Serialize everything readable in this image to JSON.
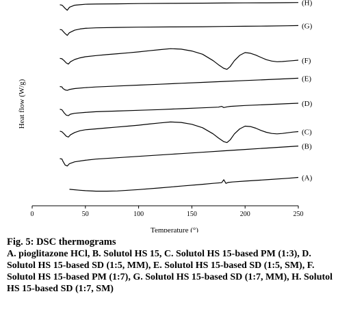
{
  "chart_data": {
    "type": "line",
    "title": "",
    "xlabel": "Temperature (°)",
    "ylabel": "Heat flow (W/g)",
    "xlim": [
      0,
      250
    ],
    "xticks": [
      0,
      50,
      100,
      150,
      200,
      250
    ],
    "x_tick_labels": [
      "0",
      "50",
      "100",
      "150",
      "200",
      "250"
    ],
    "y_ticks_shown": false,
    "series": [
      {
        "name": "(H)",
        "x": [
          26,
          28,
          29,
          31,
          33,
          35,
          40,
          45,
          50,
          60,
          80,
          100,
          130,
          160,
          180,
          200,
          220,
          240,
          250
        ],
        "y": [
          7.54,
          7.52,
          7.48,
          7.38,
          7.3,
          7.43,
          7.52,
          7.54,
          7.56,
          7.57,
          7.58,
          7.59,
          7.6,
          7.61,
          7.615,
          7.62,
          7.625,
          7.63,
          7.635
        ]
      },
      {
        "name": "(G)",
        "x": [
          26,
          28,
          29,
          31,
          33,
          35,
          40,
          45,
          50,
          60,
          80,
          100,
          130,
          160,
          180,
          200,
          220,
          240,
          250
        ],
        "y": [
          6.46,
          6.44,
          6.38,
          6.28,
          6.2,
          6.32,
          6.43,
          6.48,
          6.51,
          6.53,
          6.55,
          6.56,
          6.57,
          6.58,
          6.59,
          6.6,
          6.61,
          6.62,
          6.63
        ]
      },
      {
        "name": "(F)",
        "x": [
          26,
          28,
          30,
          32,
          34,
          36,
          40,
          45,
          50,
          60,
          70,
          80,
          90,
          100,
          110,
          120,
          130,
          140,
          150,
          160,
          170,
          175,
          180,
          183,
          186,
          190,
          195,
          200,
          205,
          210,
          215,
          220,
          225,
          230,
          235,
          240,
          245,
          250
        ],
        "y": [
          5.2,
          5.18,
          5.1,
          5.0,
          4.95,
          5.05,
          5.15,
          5.22,
          5.27,
          5.32,
          5.36,
          5.4,
          5.44,
          5.48,
          5.53,
          5.58,
          5.62,
          5.6,
          5.52,
          5.38,
          5.1,
          4.92,
          4.76,
          4.72,
          4.84,
          5.1,
          5.33,
          5.45,
          5.42,
          5.34,
          5.24,
          5.14,
          5.08,
          5.05,
          5.06,
          5.08,
          5.1,
          5.12
        ]
      },
      {
        "name": "(E)",
        "x": [
          26,
          28,
          29,
          31,
          33,
          35,
          40,
          50,
          60,
          80,
          100,
          120,
          140,
          160,
          180,
          200,
          220,
          240,
          250
        ],
        "y": [
          3.97,
          3.95,
          3.88,
          3.82,
          3.8,
          3.84,
          3.88,
          3.92,
          3.95,
          3.99,
          4.03,
          4.07,
          4.11,
          4.15,
          4.19,
          4.23,
          4.27,
          4.31,
          4.33
        ]
      },
      {
        "name": "(D)",
        "x": [
          26,
          28,
          30,
          32,
          34,
          36,
          40,
          50,
          60,
          80,
          100,
          120,
          140,
          160,
          175,
          178,
          180,
          183,
          186,
          200,
          220,
          240,
          250
        ],
        "y": [
          2.98,
          2.95,
          2.82,
          2.72,
          2.7,
          2.76,
          2.8,
          2.84,
          2.87,
          2.9,
          2.93,
          2.96,
          3.0,
          3.04,
          3.07,
          3.1,
          3.05,
          3.08,
          3.1,
          3.14,
          3.18,
          3.22,
          3.24
        ]
      },
      {
        "name": "(C)",
        "x": [
          26,
          28,
          30,
          32,
          34,
          36,
          40,
          45,
          50,
          60,
          70,
          80,
          90,
          100,
          110,
          120,
          130,
          140,
          150,
          160,
          170,
          175,
          180,
          183,
          186,
          190,
          195,
          200,
          205,
          210,
          215,
          220,
          225,
          230,
          235,
          240,
          245,
          250
        ],
        "y": [
          2.02,
          1.99,
          1.9,
          1.8,
          1.76,
          1.86,
          1.96,
          2.04,
          2.08,
          2.12,
          2.16,
          2.2,
          2.24,
          2.28,
          2.33,
          2.38,
          2.42,
          2.4,
          2.32,
          2.17,
          1.9,
          1.72,
          1.56,
          1.52,
          1.64,
          1.9,
          2.12,
          2.24,
          2.22,
          2.15,
          2.05,
          1.97,
          1.92,
          1.9,
          1.92,
          1.95,
          1.98,
          2.0
        ]
      },
      {
        "name": "(B)",
        "x": [
          26,
          28,
          29,
          31,
          33,
          35,
          40,
          50,
          60,
          80,
          100,
          120,
          140,
          160,
          180,
          200,
          220,
          240,
          250
        ],
        "y": [
          0.82,
          0.8,
          0.7,
          0.54,
          0.5,
          0.6,
          0.68,
          0.75,
          0.8,
          0.86,
          0.92,
          0.98,
          1.04,
          1.1,
          1.16,
          1.22,
          1.28,
          1.34,
          1.37
        ]
      },
      {
        "name": "(A)",
        "x": [
          35,
          45,
          50,
          60,
          70,
          80,
          90,
          100,
          120,
          140,
          160,
          170,
          178,
          180,
          182,
          184,
          188,
          200,
          220,
          240,
          250
        ],
        "y": [
          -0.52,
          -0.56,
          -0.58,
          -0.6,
          -0.6,
          -0.59,
          -0.56,
          -0.53,
          -0.46,
          -0.38,
          -0.3,
          -0.26,
          -0.23,
          -0.1,
          -0.26,
          -0.22,
          -0.2,
          -0.16,
          -0.1,
          -0.04,
          0.0
        ]
      }
    ]
  },
  "caption": {
    "title": "Fig. 5: DSC thermograms",
    "text": "A. pioglitazone HCl, B. Solutol HS 15, C. Solutol HS 15-based PM (1:3), D. Solutol HS 15-based SD (1:5, MM), E. Solutol HS 15-based SD (1:5, SM), F. Solutol HS 15-based PM (1:7), G. Solutol HS 15-based SD (1:7, MM), H. Solutol HS 15-based SD (1:7, SM)"
  }
}
